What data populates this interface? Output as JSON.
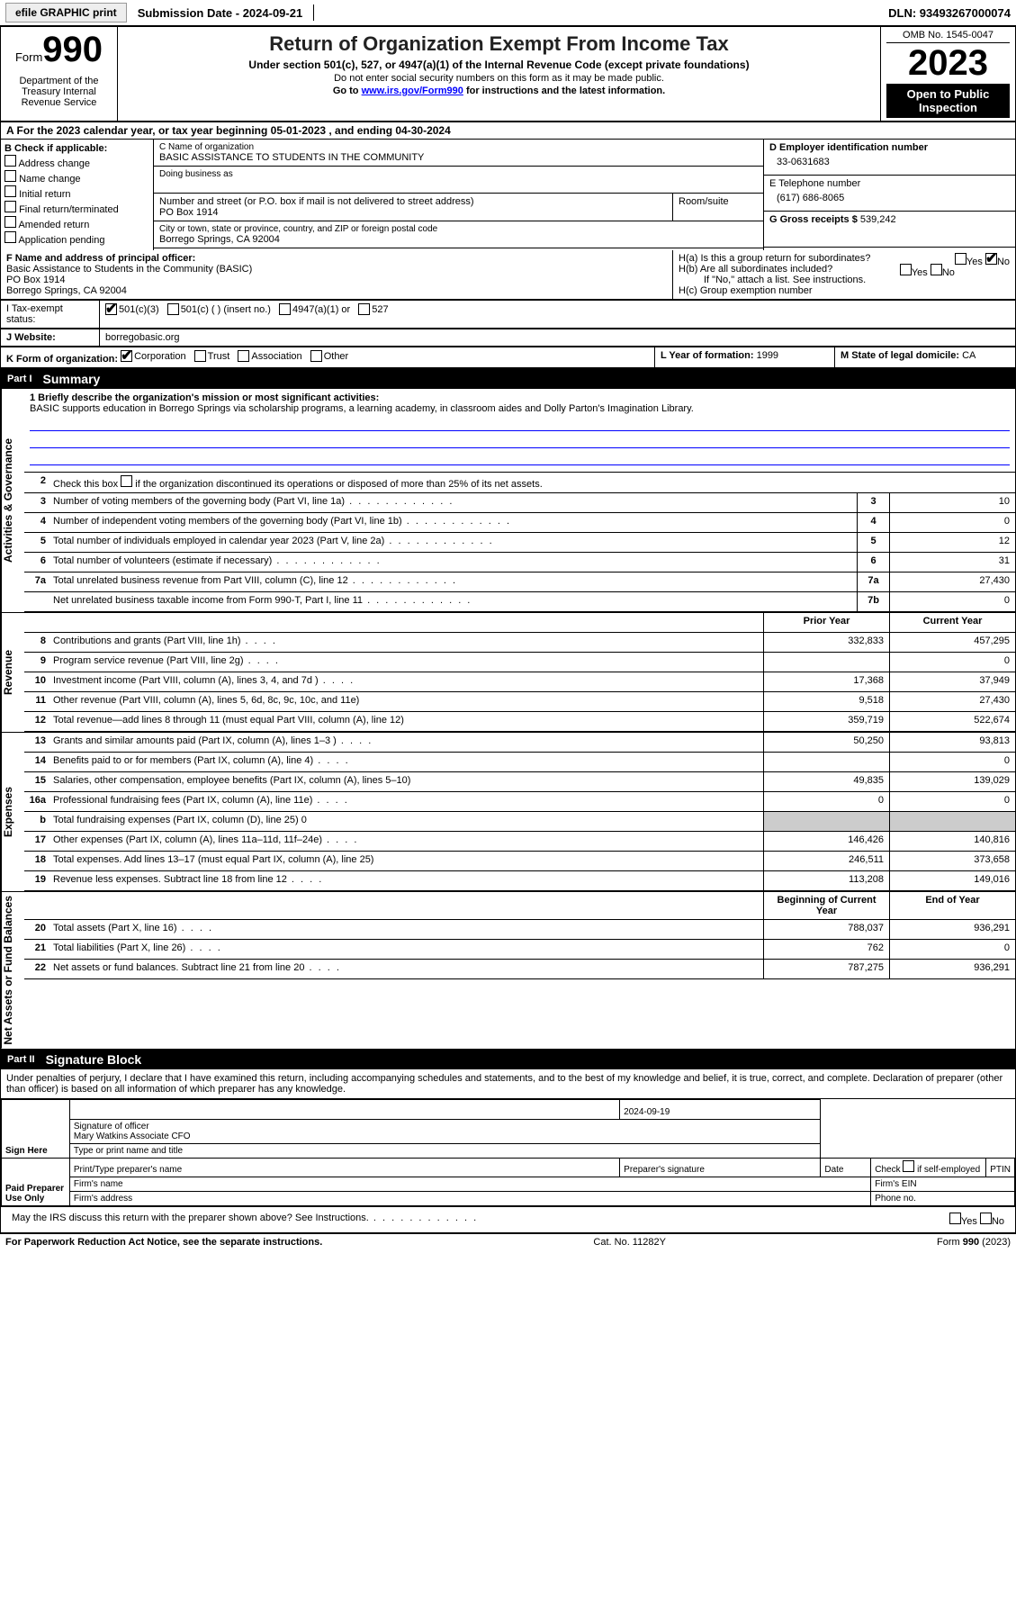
{
  "topbar": {
    "efile": "efile GRAPHIC print",
    "submission": "Submission Date - 2024-09-21",
    "dln": "DLN: 93493267000074"
  },
  "header": {
    "form_label": "Form",
    "form_num": "990",
    "dept": "Department of the Treasury Internal Revenue Service",
    "title": "Return of Organization Exempt From Income Tax",
    "subtitle": "Under section 501(c), 527, or 4947(a)(1) of the Internal Revenue Code (except private foundations)",
    "line1": "Do not enter social security numbers on this form as it may be made public.",
    "line2_pre": "Go to ",
    "line2_link": "www.irs.gov/Form990",
    "line2_post": " for instructions and the latest information.",
    "omb": "OMB No. 1545-0047",
    "year": "2023",
    "open": "Open to Public Inspection"
  },
  "section_a": "A   For the 2023 calendar year, or tax year beginning 05-01-2023   , and ending 04-30-2024",
  "col_b": {
    "label": "B Check if applicable:",
    "items": [
      "Address change",
      "Name change",
      "Initial return",
      "Final return/terminated",
      "Amended return",
      "Application pending"
    ]
  },
  "block_c": {
    "name_lbl": "C Name of organization",
    "name": "BASIC ASSISTANCE TO STUDENTS IN THE COMMUNITY",
    "dba_lbl": "Doing business as",
    "addr_lbl": "Number and street (or P.O. box if mail is not delivered to street address)",
    "room_lbl": "Room/suite",
    "addr": "PO Box 1914",
    "city_lbl": "City or town, state or province, country, and ZIP or foreign postal code",
    "city": "Borrego Springs, CA   92004"
  },
  "block_d": {
    "ein_lbl": "D Employer identification number",
    "ein": "33-0631683",
    "phone_lbl": "E Telephone number",
    "phone": "(617) 686-8065",
    "gross_lbl": "G Gross receipts $",
    "gross": "539,242"
  },
  "block_f": {
    "lbl": "F  Name and address of principal officer:",
    "name": "Basic Assistance to Students in the Community (BASIC)",
    "addr1": "PO Box 1914",
    "addr2": "Borrego Springs, CA   92004"
  },
  "block_h": {
    "ha": "H(a)  Is this a group return for subordinates?",
    "hb": "H(b)  Are all subordinates included?",
    "hb_note": "If \"No,\" attach a list. See instructions.",
    "hc": "H(c)  Group exemption number",
    "yes": "Yes",
    "no": "No"
  },
  "block_i": {
    "lbl": "I   Tax-exempt status:",
    "opt1": "501(c)(3)",
    "opt2": "501(c) (  ) (insert no.)",
    "opt3": "4947(a)(1) or",
    "opt4": "527"
  },
  "block_j": {
    "lbl": "J   Website:",
    "val": "borregobasic.org"
  },
  "block_k": {
    "lbl": "K Form of organization:",
    "corp": "Corporation",
    "trust": "Trust",
    "assoc": "Association",
    "other": "Other"
  },
  "block_l": {
    "lbl": "L Year of formation:",
    "val": "1999"
  },
  "block_m": {
    "lbl": "M State of legal domicile:",
    "val": "CA"
  },
  "part1": {
    "num": "Part I",
    "title": "Summary"
  },
  "tabs": {
    "ag": "Activities & Governance",
    "rev": "Revenue",
    "exp": "Expenses",
    "na": "Net Assets or Fund Balances"
  },
  "mission": {
    "lbl": "1   Briefly describe the organization's mission or most significant activities:",
    "text": "BASIC supports education in Borrego Springs via scholarship programs, a learning academy, in classroom aides and Dolly Parton's Imagination Library."
  },
  "line2": "Check this box        if the organization discontinued its operations or disposed of more than 25% of its net assets.",
  "ag_lines": [
    {
      "n": "3",
      "d": "Number of voting members of the governing body (Part VI, line 1a)",
      "b": "3",
      "v": "10"
    },
    {
      "n": "4",
      "d": "Number of independent voting members of the governing body (Part VI, line 1b)",
      "b": "4",
      "v": "0"
    },
    {
      "n": "5",
      "d": "Total number of individuals employed in calendar year 2023 (Part V, line 2a)",
      "b": "5",
      "v": "12"
    },
    {
      "n": "6",
      "d": "Total number of volunteers (estimate if necessary)",
      "b": "6",
      "v": "31"
    },
    {
      "n": "7a",
      "d": "Total unrelated business revenue from Part VIII, column (C), line 12",
      "b": "7a",
      "v": "27,430"
    },
    {
      "n": "",
      "d": "Net unrelated business taxable income from Form 990-T, Part I, line 11",
      "b": "7b",
      "v": "0"
    }
  ],
  "col_hdrs": {
    "prior": "Prior Year",
    "current": "Current Year",
    "begin": "Beginning of Current Year",
    "end": "End of Year"
  },
  "rev_lines": [
    {
      "n": "8",
      "d": "Contributions and grants (Part VIII, line 1h)",
      "p": "332,833",
      "c": "457,295"
    },
    {
      "n": "9",
      "d": "Program service revenue (Part VIII, line 2g)",
      "p": "",
      "c": "0"
    },
    {
      "n": "10",
      "d": "Investment income (Part VIII, column (A), lines 3, 4, and 7d )",
      "p": "17,368",
      "c": "37,949"
    },
    {
      "n": "11",
      "d": "Other revenue (Part VIII, column (A), lines 5, 6d, 8c, 9c, 10c, and 11e)",
      "p": "9,518",
      "c": "27,430"
    },
    {
      "n": "12",
      "d": "Total revenue—add lines 8 through 11 (must equal Part VIII, column (A), line 12)",
      "p": "359,719",
      "c": "522,674"
    }
  ],
  "exp_lines": [
    {
      "n": "13",
      "d": "Grants and similar amounts paid (Part IX, column (A), lines 1–3 )",
      "p": "50,250",
      "c": "93,813"
    },
    {
      "n": "14",
      "d": "Benefits paid to or for members (Part IX, column (A), line 4)",
      "p": "",
      "c": "0"
    },
    {
      "n": "15",
      "d": "Salaries, other compensation, employee benefits (Part IX, column (A), lines 5–10)",
      "p": "49,835",
      "c": "139,029"
    },
    {
      "n": "16a",
      "d": "Professional fundraising fees (Part IX, column (A), line 11e)",
      "p": "0",
      "c": "0"
    },
    {
      "n": "b",
      "d": "Total fundraising expenses (Part IX, column (D), line 25) 0",
      "p": "SHADE",
      "c": "SHADE"
    },
    {
      "n": "17",
      "d": "Other expenses (Part IX, column (A), lines 11a–11d, 11f–24e)",
      "p": "146,426",
      "c": "140,816"
    },
    {
      "n": "18",
      "d": "Total expenses. Add lines 13–17 (must equal Part IX, column (A), line 25)",
      "p": "246,511",
      "c": "373,658"
    },
    {
      "n": "19",
      "d": "Revenue less expenses. Subtract line 18 from line 12",
      "p": "113,208",
      "c": "149,016"
    }
  ],
  "na_lines": [
    {
      "n": "20",
      "d": "Total assets (Part X, line 16)",
      "p": "788,037",
      "c": "936,291"
    },
    {
      "n": "21",
      "d": "Total liabilities (Part X, line 26)",
      "p": "762",
      "c": "0"
    },
    {
      "n": "22",
      "d": "Net assets or fund balances. Subtract line 21 from line 20",
      "p": "787,275",
      "c": "936,291"
    }
  ],
  "part2": {
    "num": "Part II",
    "title": "Signature Block"
  },
  "sig": {
    "declare": "Under penalties of perjury, I declare that I have examined this return, including accompanying schedules and statements, and to the best of my knowledge and belief, it is true, correct, and complete. Declaration of preparer (other than officer) is based on all information of which preparer has any knowledge.",
    "sign_here": "Sign Here",
    "date": "2024-09-19",
    "sig_officer": "Signature of officer",
    "officer_name": "Mary Watkins  Associate CFO",
    "type_name": "Type or print name and title",
    "paid": "Paid Preparer Use Only",
    "pp_name": "Print/Type preparer's name",
    "pp_sig": "Preparer's signature",
    "pp_date": "Date",
    "pp_check": "Check         if self-employed",
    "ptin": "PTIN",
    "firm_name": "Firm's name",
    "firm_ein": "Firm's EIN",
    "firm_addr": "Firm's address",
    "phone": "Phone no.",
    "discuss": "May the IRS discuss this return with the preparer shown above? See Instructions."
  },
  "footer": {
    "left": "For Paperwork Reduction Act Notice, see the separate instructions.",
    "mid": "Cat. No. 11282Y",
    "right": "Form 990 (2023)"
  }
}
